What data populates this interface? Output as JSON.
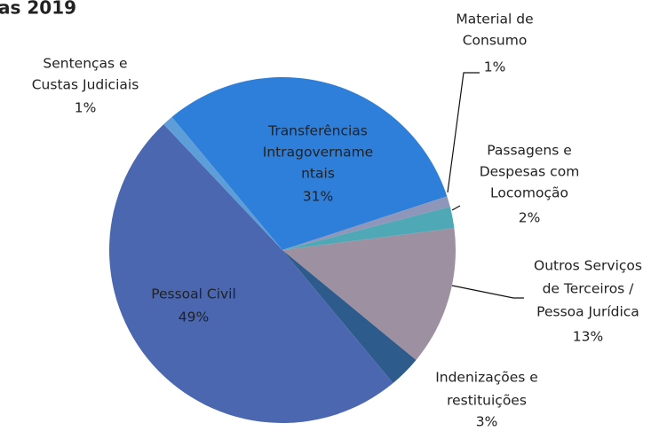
{
  "chart_data": {
    "type": "pie",
    "title": "as 2019",
    "labels": [
      [
        "Transferências",
        "Intragovername",
        "ntais"
      ],
      [
        "Material de",
        "Consumo"
      ],
      [
        "Passagens e",
        "Despesas com",
        "Locomoção"
      ],
      [
        "Outros Serviços",
        "de Terceiros /",
        "Pessoa Jurídica"
      ],
      [
        "Indenizações e",
        "restituições"
      ],
      [
        "Pessoal Civil"
      ],
      [
        "Sentenças e",
        "Custas Judiciais"
      ]
    ],
    "values": [
      31,
      1,
      2,
      13,
      3,
      49,
      1
    ],
    "value_labels": [
      "31%",
      "1%",
      "2%",
      "13%",
      "3%",
      "49%",
      "1%"
    ],
    "colors": [
      "#2e7fd9",
      "#8e96b9",
      "#4ea8b6",
      "#9d90a1",
      "#2d5b8b",
      "#4a67b0",
      "#5d9ed8"
    ]
  }
}
